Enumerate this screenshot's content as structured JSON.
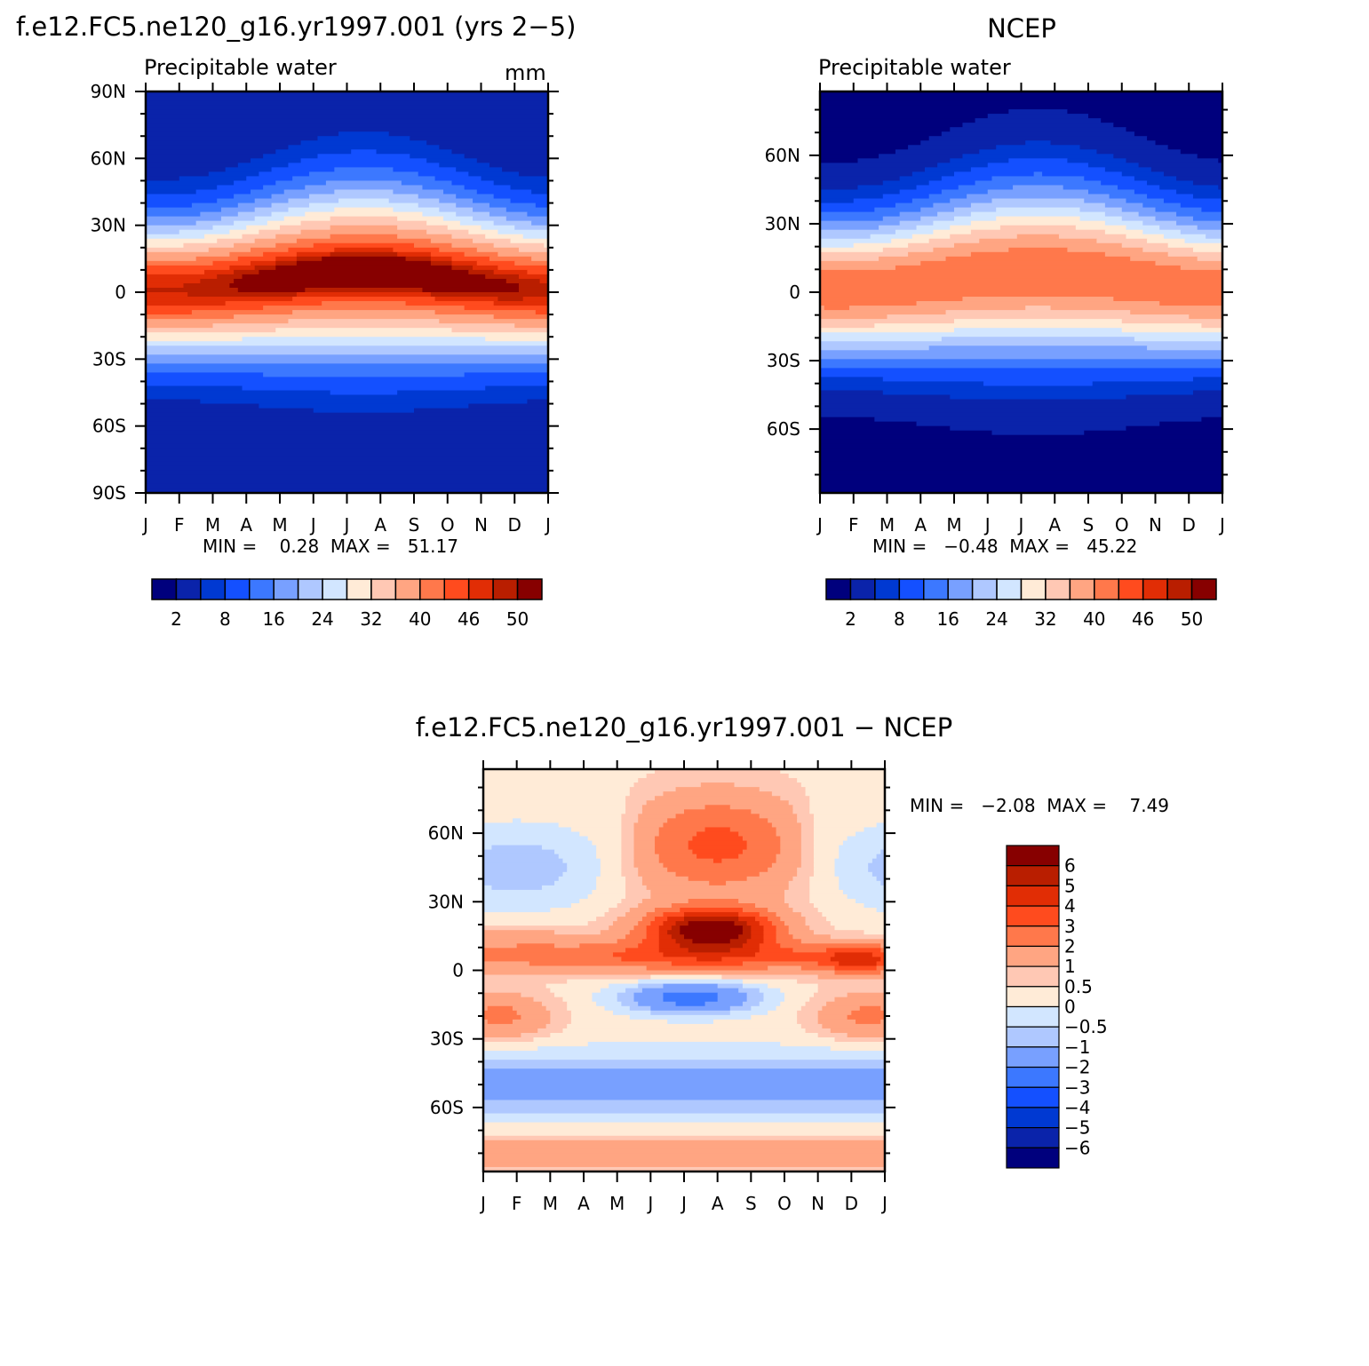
{
  "colors": {
    "seq": [
      "#00007d",
      "#0a23aa",
      "#0039d2",
      "#1450ff",
      "#3c78ff",
      "#78a0ff",
      "#afc8ff",
      "#d2e6ff",
      "#ffebd7",
      "#ffc8b4",
      "#ffa582",
      "#ff784b",
      "#ff4b1e",
      "#e12d05",
      "#b91e00",
      "#870000"
    ],
    "div": [
      "#00007d",
      "#0a23aa",
      "#0039d2",
      "#1450ff",
      "#3c78ff",
      "#78a0ff",
      "#afc8ff",
      "#d2e6ff",
      "#ffebd7",
      "#ffc8b4",
      "#ffa582",
      "#ff784b",
      "#ff4b1e",
      "#e12d05",
      "#b91e00",
      "#870000"
    ]
  },
  "panels": [
    {
      "title": "f.e12.FC5.ne120_g16.yr1997.001 (yrs 2−5)",
      "subtitle": "Precipitable water",
      "units": "mm",
      "lat_labels": [
        "90N",
        "60N",
        "30N",
        "0",
        "30S",
        "60S",
        "90S"
      ],
      "month_labels": [
        "J",
        "F",
        "M",
        "A",
        "M",
        "J",
        "J",
        "A",
        "S",
        "O",
        "N",
        "D",
        "J"
      ],
      "min_max": "MIN =    0.28  MAX =   51.17",
      "colorbar_labels": [
        "2",
        "8",
        "16",
        "24",
        "32",
        "40",
        "46",
        "50"
      ]
    },
    {
      "title": "NCEP",
      "subtitle": "Precipitable water",
      "lat_labels": [
        "60N",
        "30N",
        "0",
        "30S",
        "60S"
      ],
      "month_labels": [
        "J",
        "F",
        "M",
        "A",
        "M",
        "J",
        "J",
        "A",
        "S",
        "O",
        "N",
        "D",
        "J"
      ],
      "min_max": "MIN =   −0.48  MAX =   45.22",
      "colorbar_labels": [
        "2",
        "8",
        "16",
        "24",
        "32",
        "40",
        "46",
        "50"
      ]
    },
    {
      "title": "f.e12.FC5.ne120_g16.yr1997.001 − NCEP",
      "lat_labels": [
        "60N",
        "30N",
        "0",
        "30S",
        "60S"
      ],
      "month_labels": [
        "J",
        "F",
        "M",
        "A",
        "M",
        "J",
        "J",
        "A",
        "S",
        "O",
        "N",
        "D",
        "J"
      ],
      "min_max": "MIN =   −2.08  MAX =    7.49",
      "colorbar_labels": [
        "6",
        "5",
        "4",
        "3",
        "2",
        "1",
        "0.5",
        "0",
        "−0.5",
        "−1",
        "−2",
        "−3",
        "−4",
        "−5",
        "−6"
      ]
    }
  ],
  "chart_data": [
    {
      "type": "heatmap",
      "title": "f.e12.FC5.ne120_g16.yr1997.001 (yrs 2−5)",
      "subtitle": "Precipitable water",
      "units": "mm",
      "x": [
        "J",
        "F",
        "M",
        "A",
        "M",
        "J",
        "J",
        "A",
        "S",
        "O",
        "N",
        "D",
        "J"
      ],
      "ylim": [
        -90,
        90
      ],
      "levels": [
        2,
        5,
        8,
        12,
        16,
        20,
        24,
        28,
        32,
        36,
        40,
        43,
        46,
        48,
        50
      ],
      "min": 0.28,
      "max": 51.17
    },
    {
      "type": "heatmap",
      "title": "NCEP",
      "subtitle": "Precipitable water",
      "x": [
        "J",
        "F",
        "M",
        "A",
        "M",
        "J",
        "J",
        "A",
        "S",
        "O",
        "N",
        "D",
        "J"
      ],
      "ylim": [
        -90,
        90
      ],
      "levels": [
        2,
        5,
        8,
        12,
        16,
        20,
        24,
        28,
        32,
        36,
        40,
        43,
        46,
        48,
        50
      ],
      "min": -0.48,
      "max": 45.22
    },
    {
      "type": "heatmap",
      "title": "f.e12.FC5.ne120_g16.yr1997.001 − NCEP",
      "x": [
        "J",
        "F",
        "M",
        "A",
        "M",
        "J",
        "J",
        "A",
        "S",
        "O",
        "N",
        "D",
        "J"
      ],
      "ylim": [
        -90,
        90
      ],
      "levels": [
        -6,
        -5,
        -4,
        -3,
        -2,
        -1,
        -0.5,
        0,
        0.5,
        1,
        2,
        3,
        4,
        5,
        6
      ],
      "min": -2.08,
      "max": 7.49
    }
  ]
}
